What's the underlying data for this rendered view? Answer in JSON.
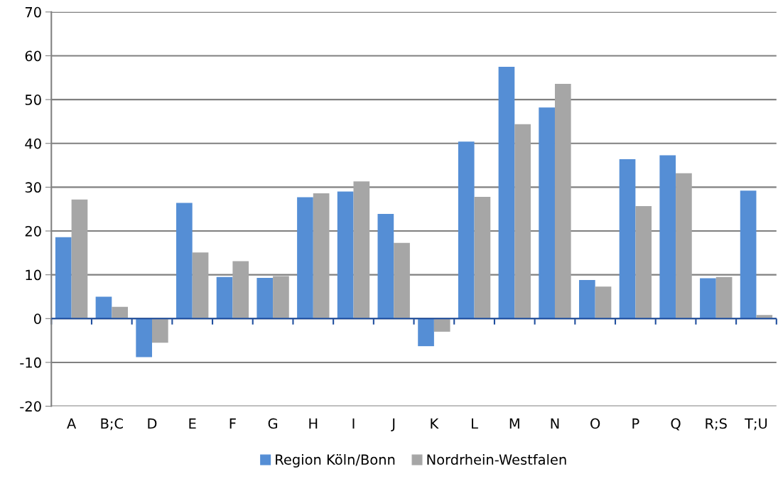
{
  "chart_data": {
    "type": "bar",
    "categories": [
      "A",
      "B;C",
      "D",
      "E",
      "F",
      "G",
      "H",
      "I",
      "J",
      "K",
      "L",
      "M",
      "N",
      "O",
      "P",
      "Q",
      "R;S",
      "T;U"
    ],
    "series": [
      {
        "name": "Region Köln/Bonn",
        "color": "#558ed5",
        "values": [
          18.6,
          5.0,
          -8.8,
          26.4,
          9.5,
          9.3,
          27.7,
          29.0,
          23.9,
          -6.3,
          40.4,
          57.5,
          48.2,
          8.8,
          36.4,
          37.3,
          9.2,
          29.2
        ]
      },
      {
        "name": "Nordrhein-Westfalen",
        "color": "#a6a6a6",
        "values": [
          27.2,
          2.7,
          -5.5,
          15.1,
          13.1,
          9.7,
          28.6,
          31.3,
          17.3,
          -3.0,
          27.8,
          44.4,
          53.6,
          7.3,
          25.7,
          33.2,
          9.5,
          0.8
        ]
      }
    ],
    "ylim": [
      -20,
      70
    ],
    "yticks": [
      -20,
      -10,
      0,
      10,
      20,
      30,
      40,
      50,
      60,
      70
    ],
    "grid": "y",
    "legend": "bottom",
    "ref_lines": [
      {
        "axis": "y",
        "value": 0,
        "color": "#1f4e9e"
      }
    ]
  }
}
